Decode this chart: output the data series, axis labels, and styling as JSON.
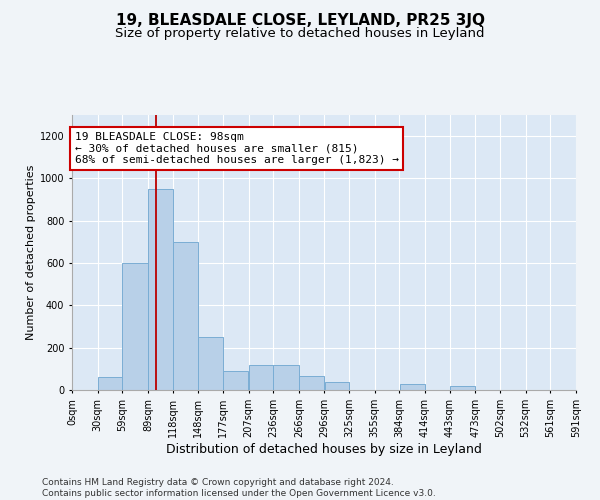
{
  "title": "19, BLEASDALE CLOSE, LEYLAND, PR25 3JQ",
  "subtitle": "Size of property relative to detached houses in Leyland",
  "xlabel": "Distribution of detached houses by size in Leyland",
  "ylabel": "Number of detached properties",
  "bin_edges": [
    0,
    30,
    59,
    89,
    118,
    148,
    177,
    207,
    236,
    266,
    296,
    325,
    355,
    384,
    414,
    443,
    473,
    502,
    532,
    561,
    591
  ],
  "bar_heights": [
    0,
    60,
    600,
    950,
    700,
    250,
    90,
    120,
    120,
    65,
    40,
    0,
    0,
    30,
    0,
    20,
    0,
    0,
    0,
    0
  ],
  "bar_color": "#b8d0e8",
  "bar_edgecolor": "#7aadd4",
  "property_size": 98,
  "vline_color": "#bb0000",
  "annotation_text": "19 BLEASDALE CLOSE: 98sqm\n← 30% of detached houses are smaller (815)\n68% of semi-detached houses are larger (1,823) →",
  "annotation_box_color": "#cc0000",
  "annotation_fontsize": 8,
  "title_fontsize": 11,
  "subtitle_fontsize": 9.5,
  "xlabel_fontsize": 9,
  "ylabel_fontsize": 8,
  "tick_fontsize": 7,
  "footer_text": "Contains HM Land Registry data © Crown copyright and database right 2024.\nContains public sector information licensed under the Open Government Licence v3.0.",
  "footer_fontsize": 6.5,
  "ylim": [
    0,
    1300
  ],
  "yticks": [
    0,
    200,
    400,
    600,
    800,
    1000,
    1200
  ],
  "background_color": "#f0f4f8",
  "plot_background": "#dce8f5",
  "grid_color": "#ffffff"
}
